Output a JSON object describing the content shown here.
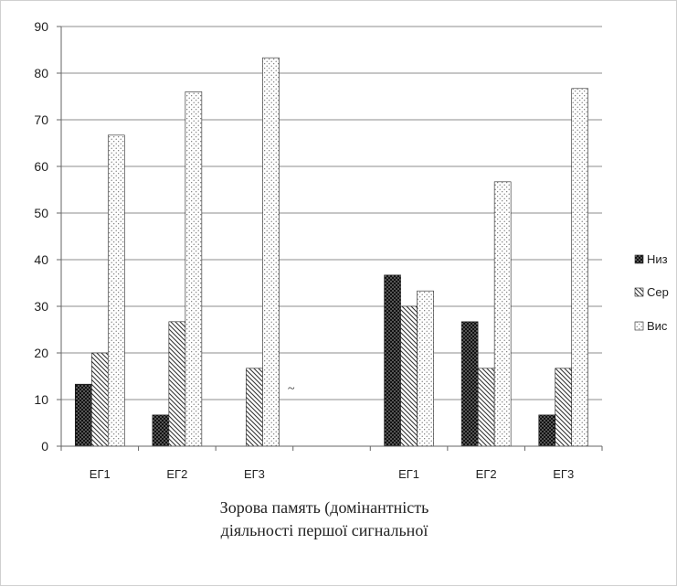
{
  "chart_data": {
    "type": "bar",
    "categories": [
      "ЕГ1",
      "ЕГ2",
      "ЕГ3",
      "",
      "ЕГ1",
      "ЕГ2",
      "ЕГ3"
    ],
    "series": [
      {
        "name": "Низ",
        "values": [
          13.3,
          6.7,
          0,
          null,
          36.7,
          26.7,
          6.7
        ]
      },
      {
        "name": "Сер",
        "values": [
          20,
          26.7,
          16.7,
          null,
          30,
          16.7,
          16.7
        ]
      },
      {
        "name": "Вис",
        "values": [
          66.7,
          76,
          83.3,
          null,
          33.3,
          56.7,
          76.7
        ]
      }
    ],
    "title": "",
    "xlabel_lines": [
      "Зорова память (домінантність",
      "діяльності першої сигнальної"
    ],
    "ylabel": "",
    "ylim": [
      0,
      90
    ],
    "yticks": [
      0,
      10,
      20,
      30,
      40,
      50,
      60,
      70,
      80,
      90
    ],
    "grid": true,
    "legend_position": "right",
    "annotation": "~",
    "colors": {
      "Низ": "#111111",
      "Сер": "#333333",
      "Вис": "#777777"
    }
  }
}
